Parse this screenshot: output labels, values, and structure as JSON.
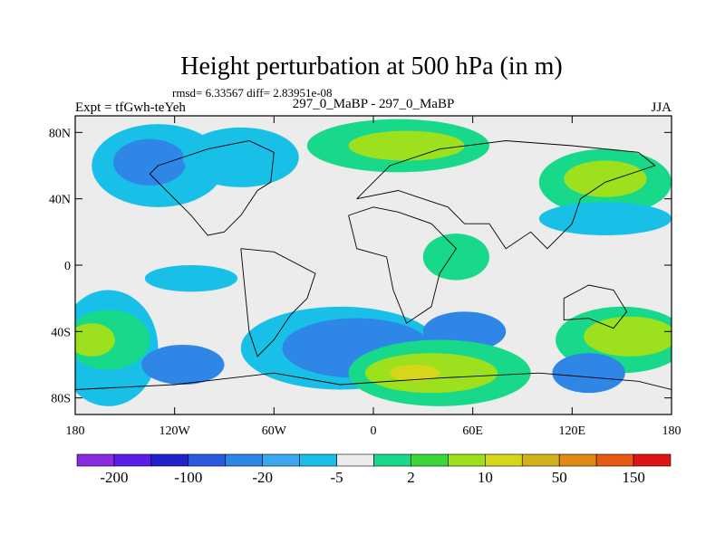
{
  "chart_data": {
    "type": "contour-map",
    "title": "Height perturbation at 500 hPa (in m)",
    "stats_line": "rmsd= 6.33567 diff= 2.83951e-08",
    "left_label": "Expt = tfGwh-teYeh",
    "center_label": "297_0_MaBP - 297_0_MaBP",
    "right_label": "JJA",
    "x_axis": {
      "range": [
        -180,
        180
      ],
      "ticks": [
        -180,
        -120,
        -60,
        0,
        60,
        120,
        180
      ],
      "tick_labels": [
        "180",
        "120W",
        "60W",
        "0",
        "60E",
        "120E",
        "180"
      ]
    },
    "y_axis": {
      "range": [
        -90,
        90
      ],
      "ticks": [
        80,
        40,
        0,
        -40,
        -80
      ],
      "tick_labels": [
        "80N",
        "40N",
        "0",
        "40S",
        "80S"
      ]
    },
    "colorbar": {
      "colors": [
        "#8a2be2",
        "#5a1ee6",
        "#2222cc",
        "#2b5ae0",
        "#2e86e6",
        "#3aa7f0",
        "#18c0e8",
        "#ececec",
        "#18d98a",
        "#3ad63a",
        "#9ce01e",
        "#d6d61a",
        "#d2b21a",
        "#e08a14",
        "#e65a14",
        "#e01414"
      ],
      "labels": [
        "-200",
        "-100",
        "-20",
        "-5",
        "2",
        "10",
        "50",
        "150"
      ]
    },
    "regions": [
      {
        "level": "-5",
        "color": "#18c0e8",
        "type": "ellipse",
        "cx": -130,
        "cy": 60,
        "rx": 40,
        "ry": 25
      },
      {
        "level": "-20",
        "color": "#2e86e6",
        "type": "ellipse",
        "cx": -135,
        "cy": 62,
        "rx": 22,
        "ry": 14
      },
      {
        "level": "-5",
        "color": "#18c0e8",
        "type": "ellipse",
        "cx": -80,
        "cy": 65,
        "rx": 35,
        "ry": 18
      },
      {
        "level": "2",
        "color": "#18d98a",
        "type": "ellipse",
        "cx": 15,
        "cy": 72,
        "rx": 55,
        "ry": 16
      },
      {
        "level": "10",
        "color": "#9ce01e",
        "type": "ellipse",
        "cx": 20,
        "cy": 72,
        "rx": 35,
        "ry": 9
      },
      {
        "level": "2",
        "color": "#18d98a",
        "type": "ellipse",
        "cx": 140,
        "cy": 50,
        "rx": 40,
        "ry": 20
      },
      {
        "level": "10",
        "color": "#9ce01e",
        "type": "ellipse",
        "cx": 140,
        "cy": 52,
        "rx": 25,
        "ry": 11
      },
      {
        "level": "-5",
        "color": "#18c0e8",
        "type": "ellipse",
        "cx": 140,
        "cy": 28,
        "rx": 40,
        "ry": 10
      },
      {
        "level": "2",
        "color": "#18d98a",
        "type": "ellipse",
        "cx": 50,
        "cy": 5,
        "rx": 20,
        "ry": 14
      },
      {
        "level": "-5",
        "color": "#18c0e8",
        "type": "ellipse",
        "cx": -110,
        "cy": -8,
        "rx": 28,
        "ry": 8
      },
      {
        "level": "-5",
        "color": "#18c0e8",
        "type": "ellipse",
        "cx": -160,
        "cy": -50,
        "rx": 30,
        "ry": 35
      },
      {
        "level": "2",
        "color": "#18d98a",
        "type": "ellipse",
        "cx": -160,
        "cy": -45,
        "rx": 25,
        "ry": 18
      },
      {
        "level": "10",
        "color": "#9ce01e",
        "type": "ellipse",
        "cx": -170,
        "cy": -45,
        "rx": 14,
        "ry": 10
      },
      {
        "level": "-20",
        "color": "#2e86e6",
        "type": "ellipse",
        "cx": -115,
        "cy": -60,
        "rx": 25,
        "ry": 12
      },
      {
        "level": "-5",
        "color": "#18c0e8",
        "type": "ellipse",
        "cx": -20,
        "cy": -50,
        "rx": 60,
        "ry": 25
      },
      {
        "level": "-20",
        "color": "#2e86e6",
        "type": "ellipse",
        "cx": -10,
        "cy": -50,
        "rx": 45,
        "ry": 18
      },
      {
        "level": "-20",
        "color": "#2e86e6",
        "type": "ellipse",
        "cx": 55,
        "cy": -40,
        "rx": 25,
        "ry": 12
      },
      {
        "level": "2",
        "color": "#18d98a",
        "type": "ellipse",
        "cx": 40,
        "cy": -65,
        "rx": 55,
        "ry": 20
      },
      {
        "level": "10",
        "color": "#9ce01e",
        "type": "ellipse",
        "cx": 35,
        "cy": -65,
        "rx": 40,
        "ry": 12
      },
      {
        "level": "50",
        "color": "#d6d61a",
        "type": "ellipse",
        "cx": 25,
        "cy": -65,
        "rx": 15,
        "ry": 5
      },
      {
        "level": "2",
        "color": "#18d98a",
        "type": "ellipse",
        "cx": 150,
        "cy": -45,
        "rx": 40,
        "ry": 20
      },
      {
        "level": "10",
        "color": "#9ce01e",
        "type": "ellipse",
        "cx": 155,
        "cy": -43,
        "rx": 28,
        "ry": 12
      },
      {
        "level": "-20",
        "color": "#2e86e6",
        "type": "ellipse",
        "cx": 130,
        "cy": -65,
        "rx": 22,
        "ry": 12
      }
    ],
    "coastlines": [
      {
        "name": "north-america",
        "points": [
          [
            -130,
            60
          ],
          [
            -100,
            70
          ],
          [
            -75,
            75
          ],
          [
            -60,
            68
          ],
          [
            -62,
            50
          ],
          [
            -70,
            45
          ],
          [
            -80,
            30
          ],
          [
            -90,
            20
          ],
          [
            -100,
            18
          ],
          [
            -110,
            30
          ],
          [
            -120,
            40
          ],
          [
            -135,
            55
          ],
          [
            -130,
            60
          ]
        ]
      },
      {
        "name": "south-america",
        "points": [
          [
            -80,
            10
          ],
          [
            -60,
            8
          ],
          [
            -35,
            -5
          ],
          [
            -40,
            -20
          ],
          [
            -50,
            -30
          ],
          [
            -60,
            -45
          ],
          [
            -70,
            -55
          ],
          [
            -75,
            -40
          ],
          [
            -78,
            -10
          ],
          [
            -80,
            10
          ]
        ]
      },
      {
        "name": "africa",
        "points": [
          [
            -15,
            30
          ],
          [
            0,
            35
          ],
          [
            15,
            32
          ],
          [
            35,
            25
          ],
          [
            50,
            10
          ],
          [
            40,
            -5
          ],
          [
            35,
            -25
          ],
          [
            20,
            -35
          ],
          [
            12,
            -15
          ],
          [
            8,
            5
          ],
          [
            -10,
            10
          ],
          [
            -15,
            30
          ]
        ]
      },
      {
        "name": "eurasia",
        "points": [
          [
            -10,
            40
          ],
          [
            0,
            50
          ],
          [
            10,
            60
          ],
          [
            40,
            70
          ],
          [
            80,
            75
          ],
          [
            120,
            72
          ],
          [
            160,
            68
          ],
          [
            170,
            60
          ],
          [
            140,
            50
          ],
          [
            125,
            40
          ],
          [
            120,
            25
          ],
          [
            105,
            10
          ],
          [
            95,
            20
          ],
          [
            80,
            10
          ],
          [
            70,
            25
          ],
          [
            55,
            25
          ],
          [
            45,
            35
          ],
          [
            30,
            40
          ],
          [
            15,
            45
          ],
          [
            -10,
            40
          ]
        ]
      },
      {
        "name": "australia",
        "points": [
          [
            115,
            -20
          ],
          [
            130,
            -12
          ],
          [
            145,
            -15
          ],
          [
            153,
            -28
          ],
          [
            145,
            -38
          ],
          [
            130,
            -32
          ],
          [
            115,
            -33
          ],
          [
            115,
            -20
          ]
        ]
      },
      {
        "name": "antarctica",
        "points": [
          [
            -180,
            -75
          ],
          [
            -120,
            -72
          ],
          [
            -60,
            -65
          ],
          [
            -20,
            -72
          ],
          [
            40,
            -68
          ],
          [
            100,
            -65
          ],
          [
            160,
            -70
          ],
          [
            180,
            -75
          ]
        ]
      }
    ]
  }
}
